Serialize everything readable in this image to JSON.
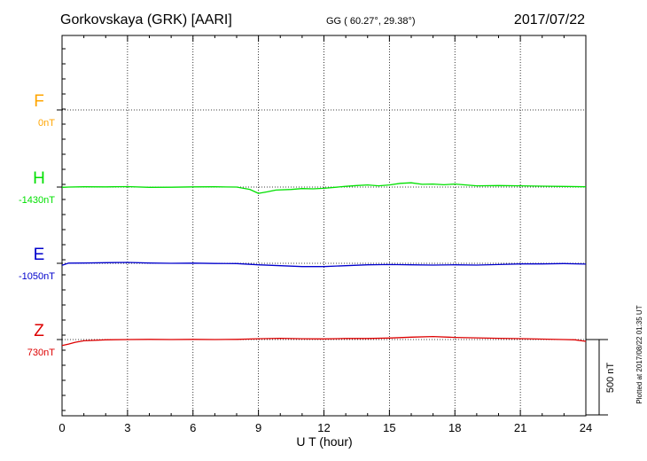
{
  "header": {
    "station": "Gorkovskaya (GRK)  [AARI]",
    "coords": "GG ( 60.27°,  29.38°)",
    "date": "2017/07/22"
  },
  "plotted_note": "Plotted at 2017/08/22 01:35 UT",
  "scale_bar_label": "500 nT",
  "chart_data": {
    "type": "line",
    "title": "Gorkovskaya (GRK)  [AARI]",
    "xlabel": "U T (hour)",
    "ylabel": "",
    "xlim": [
      0,
      24
    ],
    "x_ticks": [
      0,
      3,
      6,
      9,
      12,
      15,
      18,
      21,
      24
    ],
    "grid": true,
    "scale_bar_nT": 500,
    "series": [
      {
        "name": "F",
        "baseline_label": "0nT",
        "baseline_nT": 0,
        "color": "#ffa500",
        "x": [],
        "y": []
      },
      {
        "name": "H",
        "baseline_label": "-1430nT",
        "baseline_nT": -1430,
        "color": "#00e000",
        "x": [
          0,
          0.3,
          1,
          2,
          3,
          4,
          5,
          6,
          7,
          8,
          8.6,
          9,
          9.4,
          9.8,
          10.5,
          11,
          11.5,
          12,
          12.5,
          13,
          13.5,
          14,
          14.5,
          15,
          15.5,
          16,
          16.5,
          17,
          17.5,
          18,
          19,
          20,
          21,
          22,
          23,
          24
        ],
        "y": [
          -1432,
          -1430,
          -1428,
          -1429,
          -1427,
          -1432,
          -1431,
          -1429,
          -1428,
          -1430,
          -1445,
          -1472,
          -1462,
          -1450,
          -1446,
          -1440,
          -1442,
          -1438,
          -1432,
          -1425,
          -1420,
          -1416,
          -1422,
          -1416,
          -1405,
          -1402,
          -1412,
          -1410,
          -1415,
          -1410,
          -1422,
          -1420,
          -1422,
          -1424,
          -1426,
          -1428
        ]
      },
      {
        "name": "E",
        "baseline_label": "-1050nT",
        "baseline_nT": -1050,
        "color": "#0000cc",
        "x": [
          0,
          0.3,
          1,
          2,
          3,
          4,
          5,
          6,
          7,
          8,
          9,
          10,
          11,
          12,
          13,
          14,
          15,
          16,
          17,
          18,
          19,
          20,
          21,
          22,
          23,
          24
        ],
        "y": [
          -1063,
          -1049,
          -1048,
          -1046,
          -1044,
          -1048,
          -1050,
          -1049,
          -1051,
          -1052,
          -1060,
          -1066,
          -1072,
          -1072,
          -1066,
          -1060,
          -1058,
          -1060,
          -1062,
          -1060,
          -1062,
          -1058,
          -1054,
          -1054,
          -1052,
          -1055
        ]
      },
      {
        "name": "Z",
        "baseline_label": "730nT",
        "baseline_nT": 730,
        "color": "#dd0000",
        "x": [
          0,
          0.3,
          0.6,
          1,
          2,
          3,
          4,
          5,
          6,
          7,
          8,
          9,
          10,
          11,
          12,
          13,
          14,
          15,
          16,
          17,
          18,
          19,
          20,
          21,
          22,
          23,
          23.5,
          24
        ],
        "y": [
          690,
          700,
          712,
          722,
          728,
          730,
          731,
          730,
          731,
          730,
          731,
          735,
          738,
          735,
          734,
          737,
          737,
          740,
          746,
          750,
          744,
          741,
          738,
          736,
          733,
          730,
          728,
          718
        ]
      }
    ]
  }
}
